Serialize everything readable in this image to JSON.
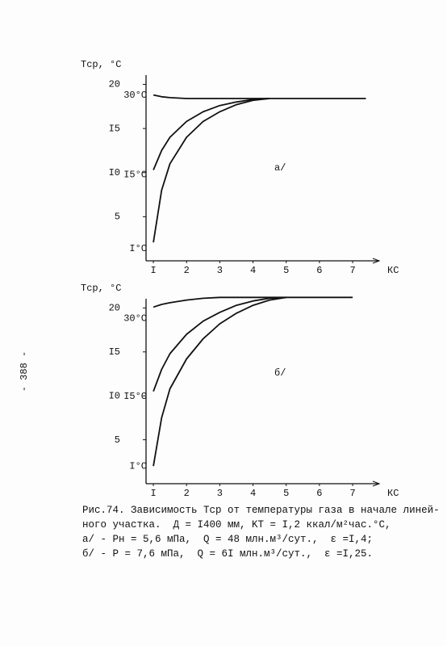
{
  "page_number": "- 388 -",
  "chart_data": [
    {
      "type": "line",
      "y_label": "Tср, °C",
      "x_label": "КС",
      "annotation": "а/",
      "x": [
        1,
        1.25,
        1.5,
        2,
        2.5,
        3,
        3.5,
        4,
        4.5,
        5,
        5.5,
        6,
        6.5,
        7,
        7.4
      ],
      "xlim": [
        0.78,
        7.8
      ],
      "ylim": [
        0,
        22.7
      ],
      "xticks": [
        {
          "value": 1,
          "label": "I"
        },
        2,
        3,
        4,
        5,
        6,
        7
      ],
      "yticks": [
        5,
        {
          "value": 10,
          "label": "I0"
        },
        {
          "value": 15,
          "label": "I5"
        },
        20
      ],
      "series": [
        {
          "name": "30°C",
          "color": "#111111",
          "values": [
            18.8,
            18.6,
            18.5,
            18.4,
            18.4,
            18.4,
            18.4,
            18.4,
            18.4,
            18.4,
            18.4,
            18.4,
            18.4,
            18.4,
            18.4
          ]
        },
        {
          "name": "I5°C",
          "color": "#111111",
          "values": [
            10.3,
            12.5,
            14.0,
            15.8,
            16.9,
            17.6,
            18.0,
            18.3,
            18.4,
            null,
            null,
            null,
            null,
            null,
            null
          ]
        },
        {
          "name": "I°C",
          "color": "#111111",
          "values": [
            2.1,
            8.0,
            11.0,
            14.0,
            15.8,
            16.9,
            17.7,
            18.2,
            18.4,
            null,
            null,
            null,
            null,
            null,
            null
          ]
        }
      ]
    },
    {
      "type": "line",
      "y_label": "Tср, °C",
      "x_label": "КС",
      "annotation": "б/",
      "x": [
        1,
        1.25,
        1.5,
        2,
        2.5,
        3,
        3.5,
        4,
        4.5,
        5,
        5.5,
        6,
        6.5,
        7
      ],
      "xlim": [
        0.78,
        7.8
      ],
      "ylim": [
        0,
        22.7
      ],
      "xticks": [
        {
          "value": 1,
          "label": "I"
        },
        2,
        3,
        4,
        5,
        6,
        7
      ],
      "yticks": [
        5,
        {
          "value": 10,
          "label": "I0"
        },
        {
          "value": 15,
          "label": "I5"
        },
        20
      ],
      "series": [
        {
          "name": "30°C",
          "color": "#111111",
          "values": [
            20.1,
            20.4,
            20.6,
            20.9,
            21.1,
            21.2,
            21.2,
            21.2,
            21.2,
            21.2,
            21.2,
            21.2,
            21.2,
            21.2
          ]
        },
        {
          "name": "I5°C",
          "color": "#111111",
          "values": [
            10.5,
            13.0,
            14.8,
            17.0,
            18.5,
            19.5,
            20.3,
            20.8,
            21.1,
            21.2,
            null,
            null,
            null,
            null
          ]
        },
        {
          "name": "I°C",
          "color": "#111111",
          "values": [
            2.0,
            7.5,
            10.8,
            14.2,
            16.5,
            18.2,
            19.4,
            20.3,
            20.9,
            21.2,
            null,
            null,
            null,
            null
          ]
        }
      ]
    }
  ],
  "caption": [
    "Рис.74. Зависимость Tср от температуры газа в начале линей-",
    "ного участка.  Д = I400 мм, KТ = I,2 ккал/м²час.°С,",
    "а/ - Pн = 5,6 мПа,  Q = 48 млн.м³/сут.,  ε =I,4;",
    "б/ - P = 7,6 мПа,  Q = 6I млн.м³/сут.,  ε =I,25."
  ]
}
